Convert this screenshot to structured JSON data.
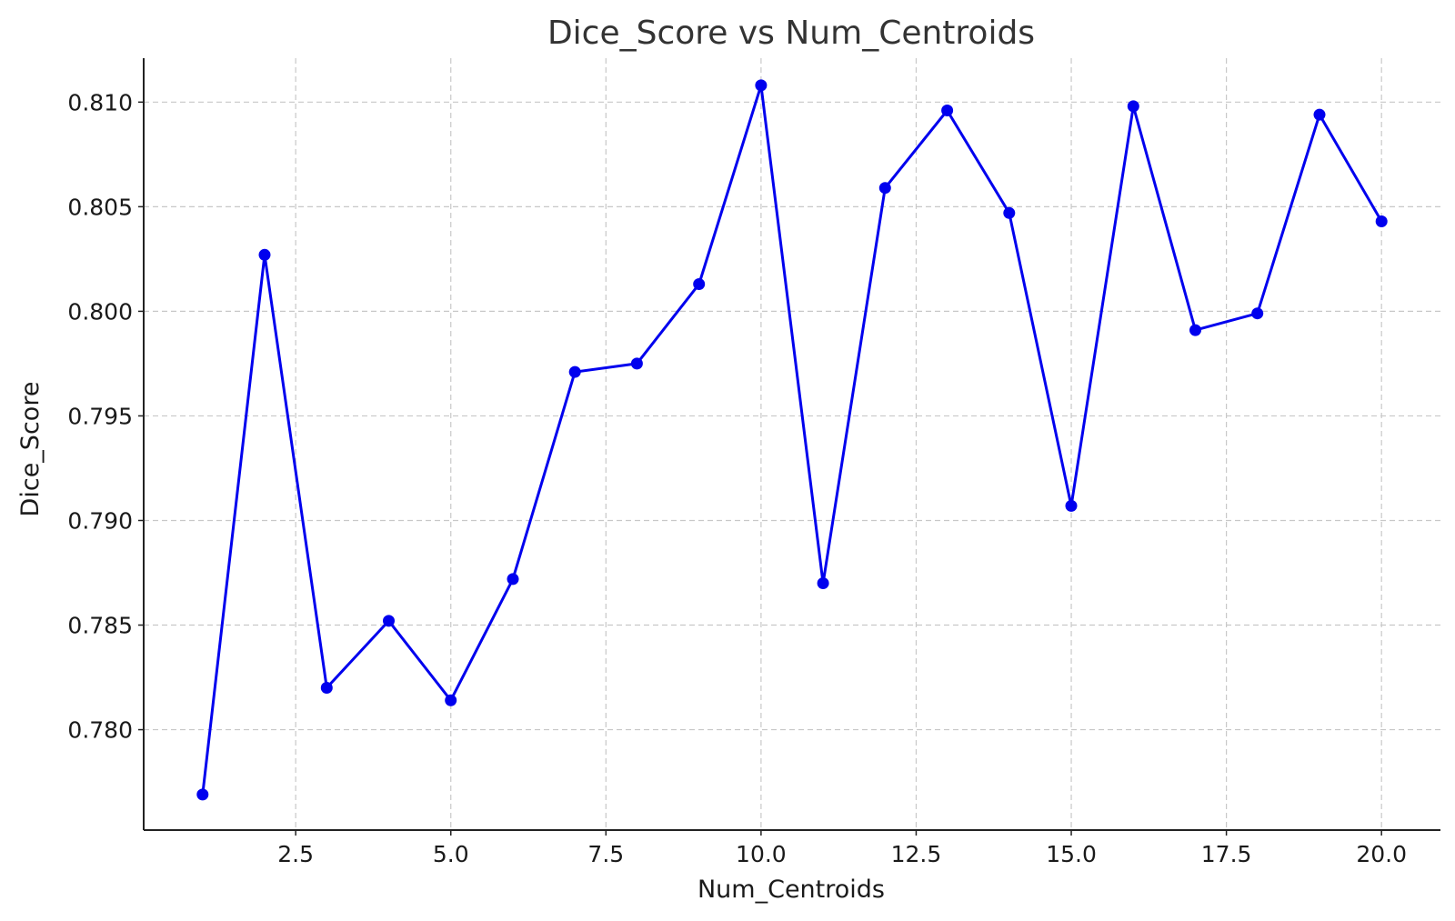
{
  "chart_data": {
    "type": "line",
    "title": "Dice_Score vs Num_Centroids",
    "xlabel": "Num_Centroids",
    "ylabel": "Dice_Score",
    "xlim": [
      0.05,
      20.95
    ],
    "ylim": [
      0.7752,
      0.8121
    ],
    "xticks": [
      2.5,
      5.0,
      7.5,
      10.0,
      12.5,
      15.0,
      17.5,
      20.0
    ],
    "xtick_labels": [
      "2.5",
      "5.0",
      "7.5",
      "10.0",
      "12.5",
      "15.0",
      "17.5",
      "20.0"
    ],
    "yticks": [
      0.78,
      0.785,
      0.79,
      0.795,
      0.8,
      0.805,
      0.81
    ],
    "ytick_labels": [
      "0.780",
      "0.785",
      "0.790",
      "0.795",
      "0.800",
      "0.805",
      "0.810"
    ],
    "grid": true,
    "color": "#0000ee",
    "series": [
      {
        "x": [
          1,
          2,
          3,
          4,
          5,
          6,
          7,
          8,
          9,
          10,
          11,
          12,
          13,
          14,
          15,
          16,
          17,
          18,
          19,
          20
        ],
        "values": [
          0.7769,
          0.8027,
          0.782,
          0.7852,
          0.7814,
          0.7872,
          0.7971,
          0.7975,
          0.8013,
          0.8108,
          0.787,
          0.8059,
          0.8096,
          0.8047,
          0.7907,
          0.8098,
          0.7991,
          0.7999,
          0.8094,
          0.8043
        ]
      }
    ]
  }
}
